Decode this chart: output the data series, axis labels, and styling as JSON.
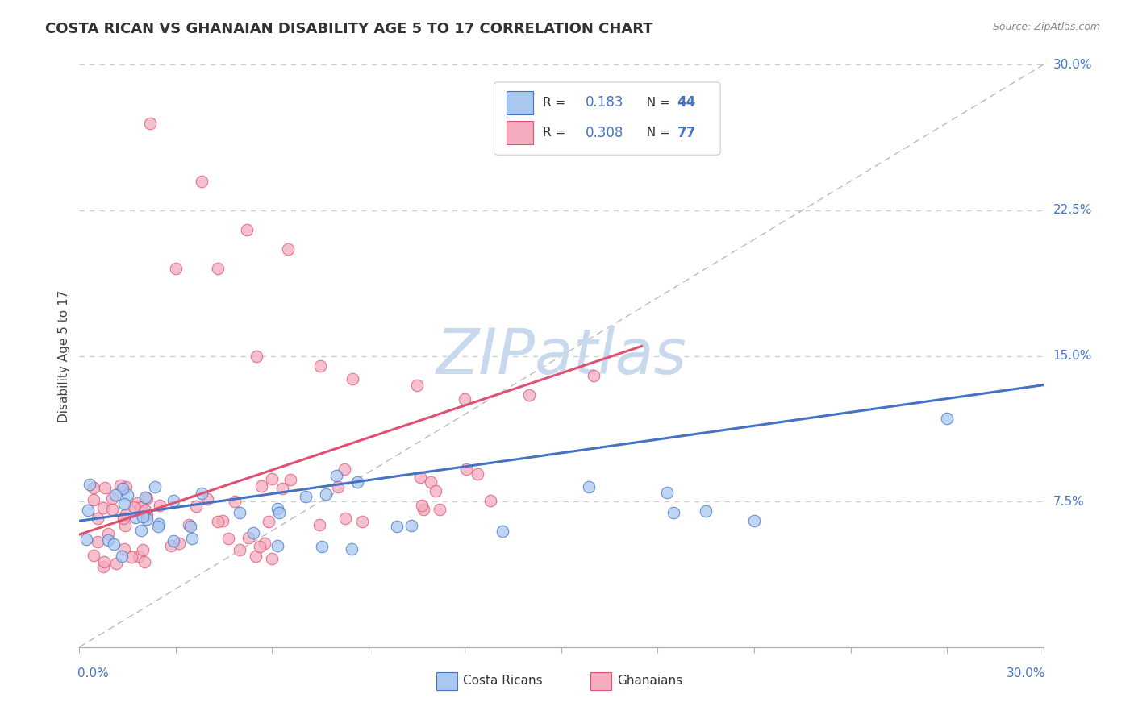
{
  "title": "COSTA RICAN VS GHANAIAN DISABILITY AGE 5 TO 17 CORRELATION CHART",
  "source_text": "Source: ZipAtlas.com",
  "ylabel": "Disability Age 5 to 17",
  "ylabel_right_ticks": [
    "7.5%",
    "15.0%",
    "22.5%",
    "30.0%"
  ],
  "ylabel_right_vals": [
    0.075,
    0.15,
    0.225,
    0.3
  ],
  "xmin": 0.0,
  "xmax": 0.3,
  "ymin": 0.0,
  "ymax": 0.3,
  "blue_color": "#A8C8F0",
  "pink_color": "#F4ACBE",
  "blue_line_color": "#4472C4",
  "pink_line_color": "#E05070",
  "legend_r_blue": "0.183",
  "legend_n_blue": "44",
  "legend_r_pink": "0.308",
  "legend_n_pink": "77",
  "background_color": "#FFFFFF",
  "grid_color": "#CCCCCC",
  "watermark_color": "#C8D8ED",
  "cr_blue_line_start_y": 0.065,
  "cr_blue_line_end_y": 0.135,
  "gh_pink_line_start_y": 0.058,
  "gh_pink_line_end_y": 0.155,
  "gh_pink_line_end_x": 0.175
}
